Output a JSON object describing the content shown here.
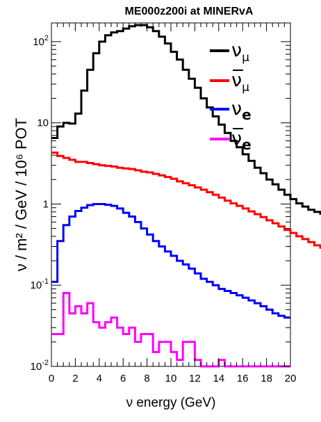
{
  "chart_data": {
    "type": "line",
    "style": "step-histogram",
    "title": "ME000z200i at MINERvA",
    "xlabel": "ν energy (GeV)",
    "ylabel": "ν / m² / GeV / 10⁶ POT",
    "xlim": [
      0,
      20
    ],
    "ylim": [
      0.01,
      170
    ],
    "yscale": "log",
    "grid": false,
    "legend_position": "top-right",
    "x_ticks": [
      "0",
      "2",
      "4",
      "6",
      "8",
      "10",
      "12",
      "14",
      "16",
      "18",
      "20"
    ],
    "y_ticks": [
      {
        "value": 0.01,
        "base": "10",
        "exp": "-2"
      },
      {
        "value": 0.1,
        "base": "10",
        "exp": "-1"
      },
      {
        "value": 1,
        "base": "1",
        "exp": ""
      },
      {
        "value": 10,
        "base": "10",
        "exp": ""
      },
      {
        "value": 100,
        "base": "10",
        "exp": "2"
      }
    ],
    "bin_width": 0.5,
    "bin_edges_start": 0,
    "series": [
      {
        "name": "ν_μ",
        "symbol": "ν",
        "sub": "μ",
        "bar": false,
        "color": "#000000",
        "values": [
          6.5,
          9.0,
          10,
          9.8,
          13,
          25,
          45,
          72,
          100,
          120,
          130,
          135,
          145,
          155,
          160,
          160,
          150,
          135,
          115,
          95,
          75,
          60,
          45,
          35,
          27,
          20,
          15.5,
          12,
          9.5,
          7.5,
          6,
          5,
          4.1,
          3.4,
          2.8,
          2.4,
          2.0,
          1.75,
          1.5,
          1.3,
          1.15,
          1.02,
          0.93,
          0.85,
          0.8,
          0.76,
          0.72,
          0.69,
          0.67,
          0.66,
          0.65,
          0.63,
          0.61,
          0.6,
          0.58,
          0.56,
          0.55,
          0.54,
          0.53,
          0.52,
          0.5,
          0.49,
          0.48,
          0.47,
          0.46,
          0.45,
          0.44,
          0.43,
          0.42,
          0.41,
          0.4
        ]
      },
      {
        "name": "ν̄_μ",
        "symbol": "ν",
        "sub": "μ",
        "bar": true,
        "color": "#ff0000",
        "values": [
          4.3,
          3.9,
          3.7,
          3.5,
          3.3,
          3.3,
          3.2,
          3.1,
          3.0,
          2.95,
          2.9,
          2.8,
          2.75,
          2.7,
          2.6,
          2.5,
          2.45,
          2.35,
          2.25,
          2.15,
          2.05,
          1.9,
          1.8,
          1.7,
          1.6,
          1.5,
          1.4,
          1.3,
          1.2,
          1.1,
          1.02,
          0.95,
          0.88,
          0.81,
          0.75,
          0.69,
          0.63,
          0.58,
          0.53,
          0.48,
          0.44,
          0.4,
          0.37,
          0.34,
          0.31,
          0.29,
          0.27,
          0.25,
          0.23,
          0.21,
          0.19,
          0.18,
          0.17,
          0.16,
          0.15,
          0.14,
          0.135,
          0.13,
          0.125,
          0.12,
          0.115,
          0.11,
          0.1,
          0.095,
          0.09,
          0.085,
          0.08,
          0.075,
          0.07,
          0.068,
          0.065
        ]
      },
      {
        "name": "ν_e",
        "symbol": "ν",
        "sub": "e",
        "bar": false,
        "color": "#0000ff",
        "values": [
          0.11,
          0.35,
          0.55,
          0.7,
          0.82,
          0.9,
          0.97,
          1.0,
          1.0,
          0.98,
          0.95,
          0.88,
          0.78,
          0.7,
          0.6,
          0.5,
          0.42,
          0.35,
          0.3,
          0.26,
          0.23,
          0.2,
          0.18,
          0.16,
          0.14,
          0.12,
          0.11,
          0.1,
          0.09,
          0.085,
          0.08,
          0.075,
          0.07,
          0.065,
          0.06,
          0.055,
          0.05,
          0.045,
          0.042,
          0.04
        ]
      },
      {
        "name": "ν̄_e",
        "symbol": "ν",
        "sub": "e",
        "bar": true,
        "color": "#ff00ff",
        "values": [
          0.025,
          0.025,
          0.08,
          0.045,
          0.055,
          0.045,
          0.06,
          0.035,
          0.03,
          0.035,
          0.04,
          0.03,
          0.025,
          0.03,
          0.02,
          0.025,
          0.025,
          0.015,
          0.02,
          0.02,
          0.015,
          0.012,
          0.02,
          0.02,
          0.012,
          0.01,
          0.01,
          0.01,
          0.012,
          0.01,
          0.01,
          0.01,
          0.01,
          0.01,
          0.01,
          0.01,
          0.01,
          0.01,
          0.01,
          0.01
        ]
      }
    ]
  }
}
